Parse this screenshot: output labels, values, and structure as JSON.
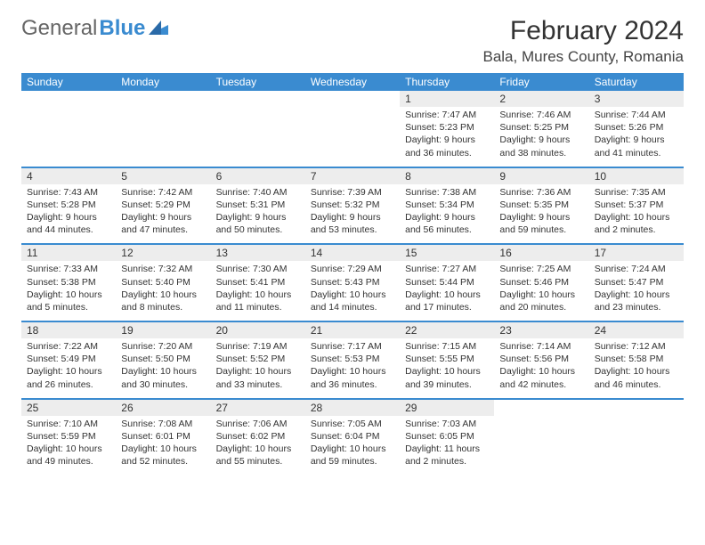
{
  "logo": {
    "text1": "General",
    "text2": "Blue"
  },
  "title": "February 2024",
  "location": "Bala, Mures County, Romania",
  "colors": {
    "header_bg": "#3a8bd0",
    "date_bg": "#ededed",
    "divider": "#3a8bd0"
  },
  "dayNames": [
    "Sunday",
    "Monday",
    "Tuesday",
    "Wednesday",
    "Thursday",
    "Friday",
    "Saturday"
  ],
  "weeks": [
    {
      "dates": [
        "",
        "",
        "",
        "",
        "1",
        "2",
        "3"
      ],
      "cells": [
        null,
        null,
        null,
        null,
        {
          "sunrise": "Sunrise: 7:47 AM",
          "sunset": "Sunset: 5:23 PM",
          "daylight": "Daylight: 9 hours and 36 minutes."
        },
        {
          "sunrise": "Sunrise: 7:46 AM",
          "sunset": "Sunset: 5:25 PM",
          "daylight": "Daylight: 9 hours and 38 minutes."
        },
        {
          "sunrise": "Sunrise: 7:44 AM",
          "sunset": "Sunset: 5:26 PM",
          "daylight": "Daylight: 9 hours and 41 minutes."
        }
      ]
    },
    {
      "dates": [
        "4",
        "5",
        "6",
        "7",
        "8",
        "9",
        "10"
      ],
      "cells": [
        {
          "sunrise": "Sunrise: 7:43 AM",
          "sunset": "Sunset: 5:28 PM",
          "daylight": "Daylight: 9 hours and 44 minutes."
        },
        {
          "sunrise": "Sunrise: 7:42 AM",
          "sunset": "Sunset: 5:29 PM",
          "daylight": "Daylight: 9 hours and 47 minutes."
        },
        {
          "sunrise": "Sunrise: 7:40 AM",
          "sunset": "Sunset: 5:31 PM",
          "daylight": "Daylight: 9 hours and 50 minutes."
        },
        {
          "sunrise": "Sunrise: 7:39 AM",
          "sunset": "Sunset: 5:32 PM",
          "daylight": "Daylight: 9 hours and 53 minutes."
        },
        {
          "sunrise": "Sunrise: 7:38 AM",
          "sunset": "Sunset: 5:34 PM",
          "daylight": "Daylight: 9 hours and 56 minutes."
        },
        {
          "sunrise": "Sunrise: 7:36 AM",
          "sunset": "Sunset: 5:35 PM",
          "daylight": "Daylight: 9 hours and 59 minutes."
        },
        {
          "sunrise": "Sunrise: 7:35 AM",
          "sunset": "Sunset: 5:37 PM",
          "daylight": "Daylight: 10 hours and 2 minutes."
        }
      ]
    },
    {
      "dates": [
        "11",
        "12",
        "13",
        "14",
        "15",
        "16",
        "17"
      ],
      "cells": [
        {
          "sunrise": "Sunrise: 7:33 AM",
          "sunset": "Sunset: 5:38 PM",
          "daylight": "Daylight: 10 hours and 5 minutes."
        },
        {
          "sunrise": "Sunrise: 7:32 AM",
          "sunset": "Sunset: 5:40 PM",
          "daylight": "Daylight: 10 hours and 8 minutes."
        },
        {
          "sunrise": "Sunrise: 7:30 AM",
          "sunset": "Sunset: 5:41 PM",
          "daylight": "Daylight: 10 hours and 11 minutes."
        },
        {
          "sunrise": "Sunrise: 7:29 AM",
          "sunset": "Sunset: 5:43 PM",
          "daylight": "Daylight: 10 hours and 14 minutes."
        },
        {
          "sunrise": "Sunrise: 7:27 AM",
          "sunset": "Sunset: 5:44 PM",
          "daylight": "Daylight: 10 hours and 17 minutes."
        },
        {
          "sunrise": "Sunrise: 7:25 AM",
          "sunset": "Sunset: 5:46 PM",
          "daylight": "Daylight: 10 hours and 20 minutes."
        },
        {
          "sunrise": "Sunrise: 7:24 AM",
          "sunset": "Sunset: 5:47 PM",
          "daylight": "Daylight: 10 hours and 23 minutes."
        }
      ]
    },
    {
      "dates": [
        "18",
        "19",
        "20",
        "21",
        "22",
        "23",
        "24"
      ],
      "cells": [
        {
          "sunrise": "Sunrise: 7:22 AM",
          "sunset": "Sunset: 5:49 PM",
          "daylight": "Daylight: 10 hours and 26 minutes."
        },
        {
          "sunrise": "Sunrise: 7:20 AM",
          "sunset": "Sunset: 5:50 PM",
          "daylight": "Daylight: 10 hours and 30 minutes."
        },
        {
          "sunrise": "Sunrise: 7:19 AM",
          "sunset": "Sunset: 5:52 PM",
          "daylight": "Daylight: 10 hours and 33 minutes."
        },
        {
          "sunrise": "Sunrise: 7:17 AM",
          "sunset": "Sunset: 5:53 PM",
          "daylight": "Daylight: 10 hours and 36 minutes."
        },
        {
          "sunrise": "Sunrise: 7:15 AM",
          "sunset": "Sunset: 5:55 PM",
          "daylight": "Daylight: 10 hours and 39 minutes."
        },
        {
          "sunrise": "Sunrise: 7:14 AM",
          "sunset": "Sunset: 5:56 PM",
          "daylight": "Daylight: 10 hours and 42 minutes."
        },
        {
          "sunrise": "Sunrise: 7:12 AM",
          "sunset": "Sunset: 5:58 PM",
          "daylight": "Daylight: 10 hours and 46 minutes."
        }
      ]
    },
    {
      "dates": [
        "25",
        "26",
        "27",
        "28",
        "29",
        "",
        ""
      ],
      "cells": [
        {
          "sunrise": "Sunrise: 7:10 AM",
          "sunset": "Sunset: 5:59 PM",
          "daylight": "Daylight: 10 hours and 49 minutes."
        },
        {
          "sunrise": "Sunrise: 7:08 AM",
          "sunset": "Sunset: 6:01 PM",
          "daylight": "Daylight: 10 hours and 52 minutes."
        },
        {
          "sunrise": "Sunrise: 7:06 AM",
          "sunset": "Sunset: 6:02 PM",
          "daylight": "Daylight: 10 hours and 55 minutes."
        },
        {
          "sunrise": "Sunrise: 7:05 AM",
          "sunset": "Sunset: 6:04 PM",
          "daylight": "Daylight: 10 hours and 59 minutes."
        },
        {
          "sunrise": "Sunrise: 7:03 AM",
          "sunset": "Sunset: 6:05 PM",
          "daylight": "Daylight: 11 hours and 2 minutes."
        },
        null,
        null
      ]
    }
  ]
}
